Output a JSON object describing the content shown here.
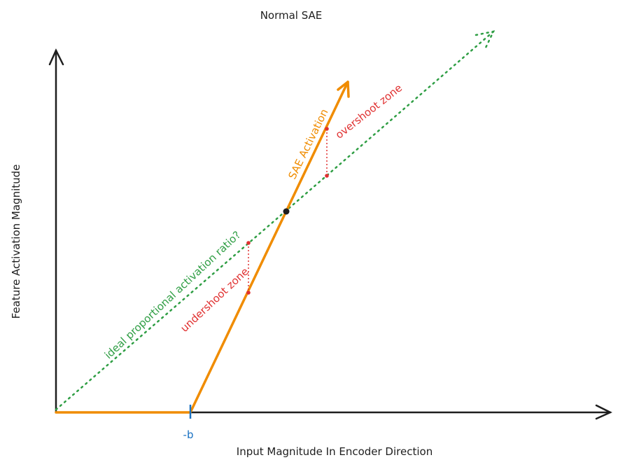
{
  "title": "Normal SAE",
  "y_axis_label": "Feature Activation Magnitude",
  "x_axis_label": "Input Magnitude In Encoder Direction",
  "threshold_label": "-b",
  "sae_line_label": "SAE Activation",
  "ideal_line_label": "ideal proportional activation ratio?",
  "overshoot_label": "overshoot zone",
  "undershoot_label": "undershoot zone"
}
